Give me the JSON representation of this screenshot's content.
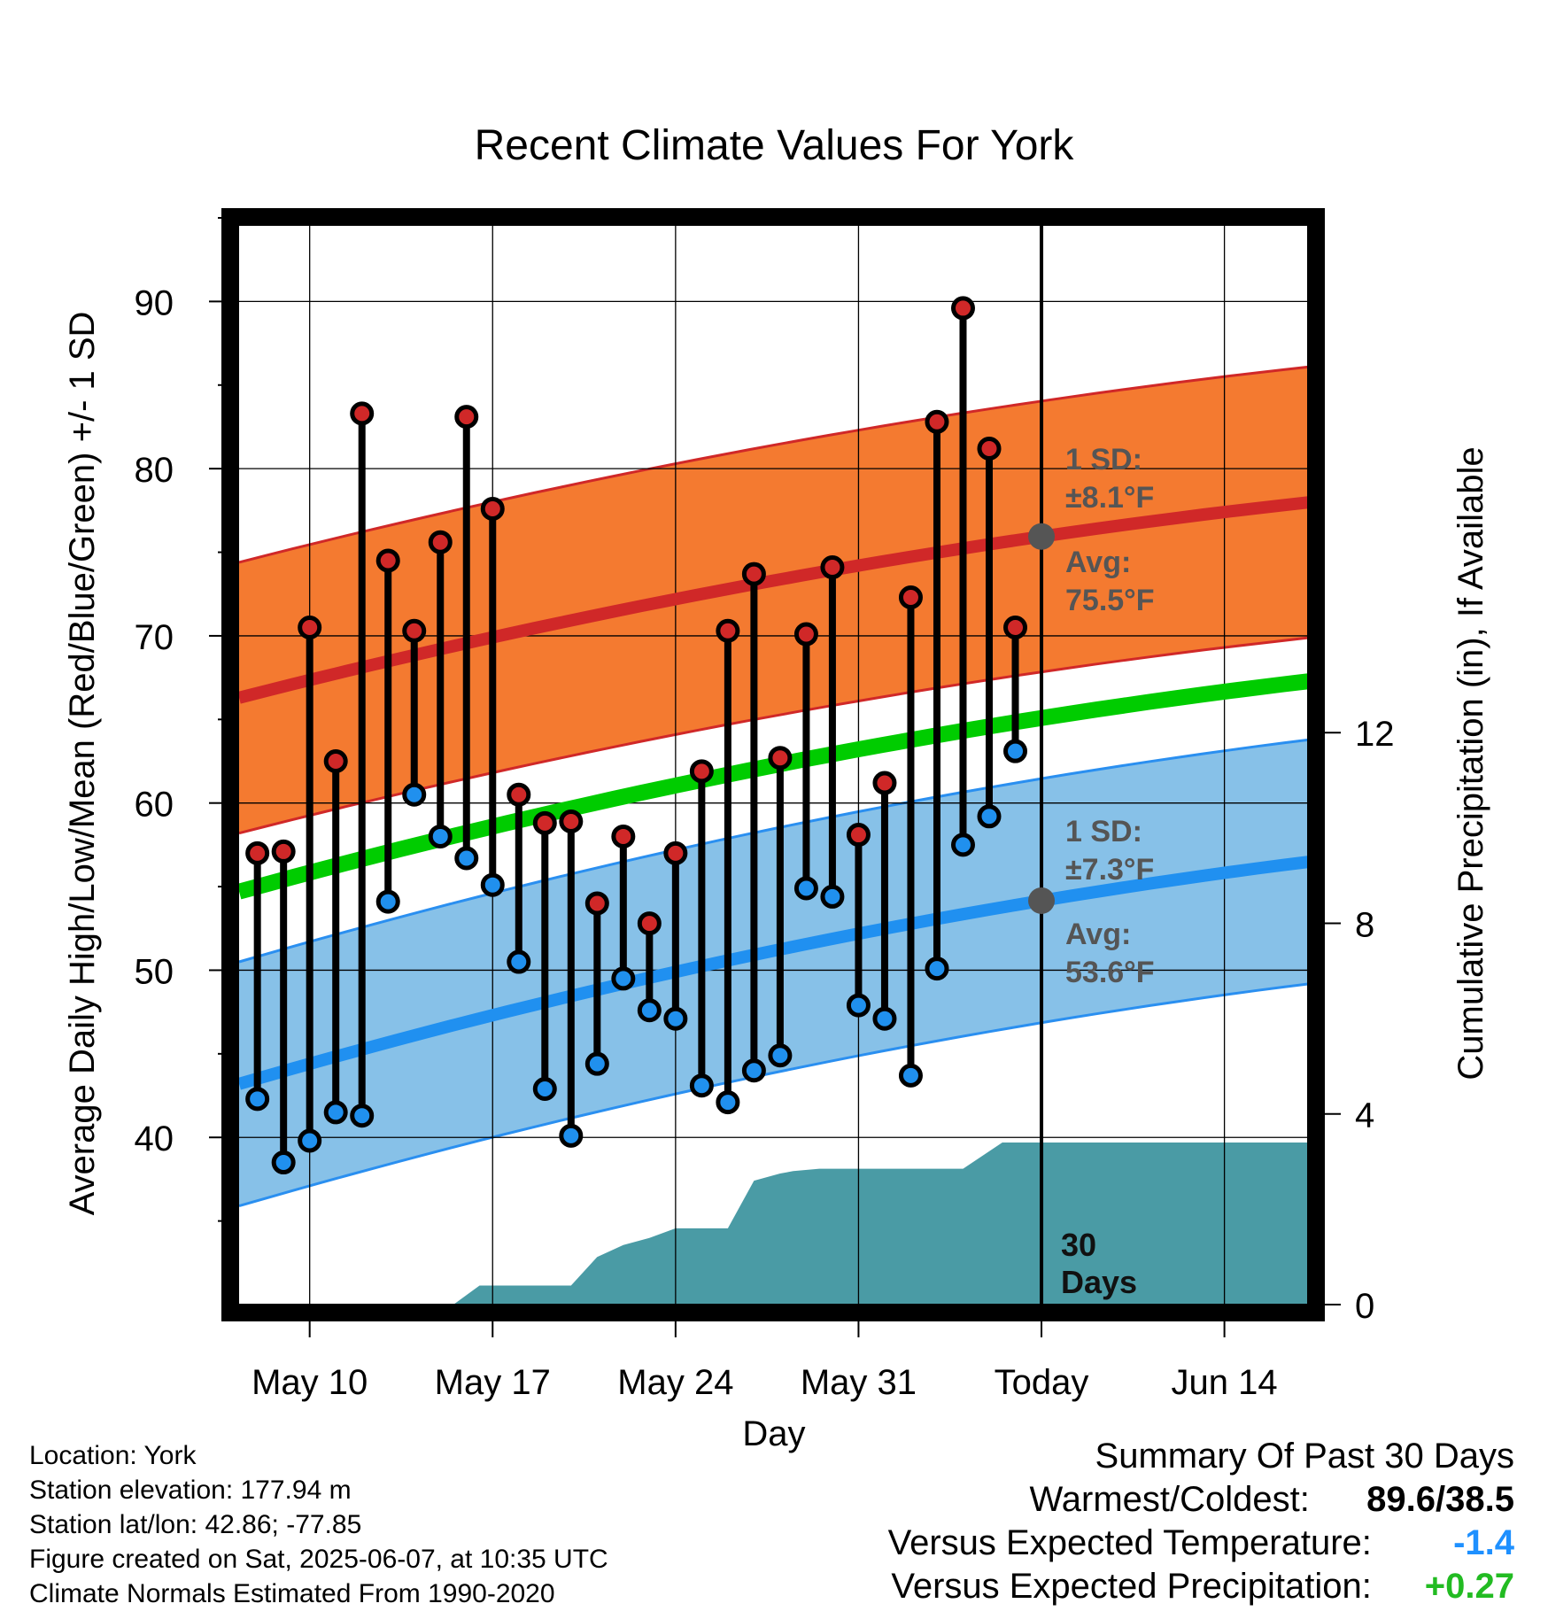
{
  "chart_data": {
    "type": "line",
    "title": "Recent Climate Values For York",
    "xlabel": "Day",
    "ylabel": "Average Daily High/Low/Mean (Red/Blue/Green) +/- 1 SD",
    "y2label": "Cumulative Precipitation (in), If Available",
    "ylim": [
      30,
      95
    ],
    "y2lim": [
      0,
      22.8
    ],
    "xlim": [
      -0.7,
      40.3
    ],
    "x_tick_labels": [
      "May 10",
      "May 17",
      "May 24",
      "May 31",
      "Today",
      "Jun 14"
    ],
    "x_tick_positions": [
      2,
      9,
      16,
      23,
      30,
      37
    ],
    "y_ticks": [
      40,
      50,
      60,
      70,
      80,
      90
    ],
    "y2_ticks": [
      0,
      4,
      8,
      12
    ],
    "grid": true,
    "days": [
      "May 8",
      "May 9",
      "May 10",
      "May 11",
      "May 12",
      "May 13",
      "May 14",
      "May 15",
      "May 16",
      "May 17",
      "May 18",
      "May 19",
      "May 20",
      "May 21",
      "May 22",
      "May 23",
      "May 24",
      "May 25",
      "May 26",
      "May 27",
      "May 28",
      "May 29",
      "May 30",
      "May 31",
      "Jun 1",
      "Jun 2",
      "Jun 3",
      "Jun 4",
      "Jun 5",
      "Jun 6"
    ],
    "highs": [
      57.0,
      57.1,
      70.5,
      62.5,
      83.3,
      74.5,
      70.3,
      75.6,
      83.1,
      77.6,
      60.5,
      58.8,
      58.9,
      54.0,
      58.0,
      52.8,
      57.0,
      61.9,
      70.3,
      73.7,
      62.7,
      70.1,
      74.1,
      58.1,
      61.2,
      72.3,
      82.8,
      89.6,
      81.2,
      70.5
    ],
    "lows": [
      42.3,
      38.5,
      39.8,
      41.5,
      41.3,
      54.1,
      60.5,
      58.0,
      56.7,
      55.1,
      50.5,
      42.9,
      40.1,
      44.4,
      49.5,
      47.6,
      47.1,
      43.1,
      42.1,
      44.0,
      44.9,
      54.9,
      54.4,
      47.9,
      47.1,
      43.7,
      50.1,
      57.5,
      59.2,
      63.1
    ],
    "normal_high": {
      "start": 66.3,
      "end": 78.0,
      "sd": 8.1
    },
    "normal_low": {
      "start": 43.2,
      "end": 56.5,
      "sd": 7.3
    },
    "normal_mean": {
      "start": 54.7,
      "end": 67.3
    },
    "precip_x": [
      -0.7,
      7.5,
      8.5,
      12.0,
      13.0,
      14.0,
      15.0,
      16.0,
      18.0,
      19.0,
      20.0,
      20.5,
      21.5,
      22.5,
      25.0,
      27.0,
      28.5,
      29.5,
      30.5,
      40.3
    ],
    "precip_cum": [
      0.0,
      0.0,
      0.4,
      0.4,
      1.0,
      1.25,
      1.4,
      1.6,
      1.6,
      2.6,
      2.75,
      2.8,
      2.85,
      2.85,
      2.85,
      2.85,
      3.4,
      3.4,
      3.4,
      3.4
    ],
    "annotations": {
      "high_sd_label": "1 SD:",
      "high_sd_value": "±8.1°F",
      "high_avg_label": "Avg:",
      "high_avg_value": "75.5°F",
      "low_sd_label": "1 SD:",
      "low_sd_value": "±7.3°F",
      "low_avg_label": "Avg:",
      "low_avg_value": "53.6°F",
      "days_number": "30",
      "days_label": "Days"
    },
    "colors": {
      "high_band": "#f47a30",
      "high_line": "#d02828",
      "low_band": "#87c1e8",
      "low_line": "#2090f0",
      "low_edge": "#2a8ff0",
      "mean_line": "#00cc00",
      "precip": "#4a9ba5",
      "high_marker": "#d02828",
      "low_marker": "#2090ee",
      "annotation": "#555555"
    }
  },
  "info": {
    "location": "Location: York",
    "elevation": "Station elevation: 177.94 m",
    "latlon": "Station lat/lon: 42.86; -77.85",
    "created": "Figure created on Sat, 2025-06-07, at 10:35 UTC",
    "normals": "Climate Normals Estimated From 1990-2020"
  },
  "summary": {
    "title": "Summary Of Past 30 Days",
    "warm_cold_label": "Warmest/Coldest:",
    "warm_cold_value": "89.6/38.5",
    "temp_label": "Versus Expected Temperature:",
    "temp_value": "-1.4",
    "precip_label": "Versus Expected Precipitation:",
    "precip_value": "+0.27"
  }
}
